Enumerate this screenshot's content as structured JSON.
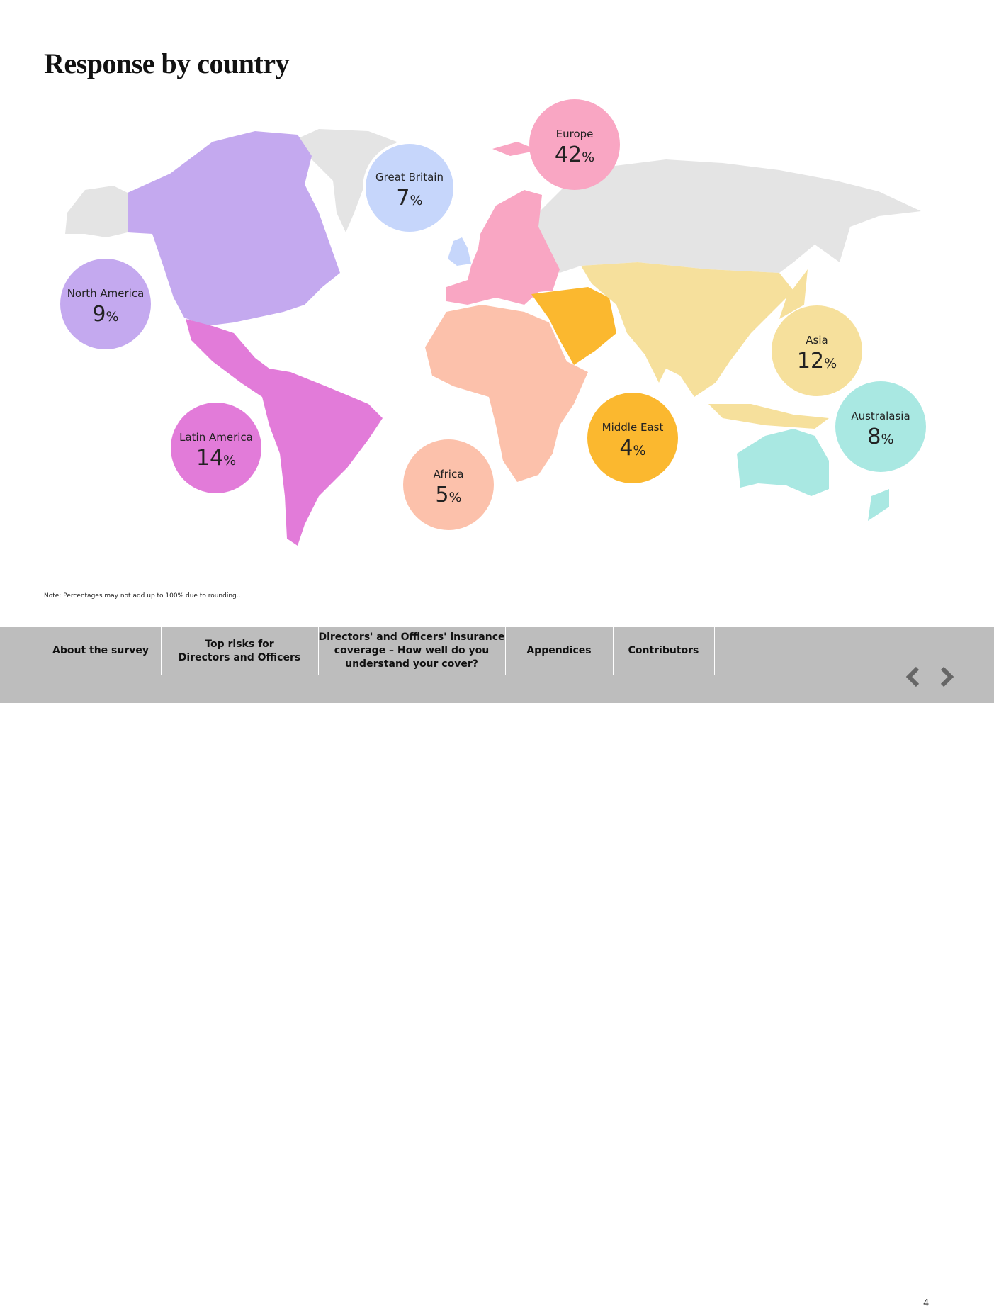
{
  "title": "Response by country",
  "regions": [
    {
      "name": "Europe",
      "value": 42,
      "unit": "%",
      "color": "#f9a6c3"
    },
    {
      "name": "Great Britain",
      "value": 7,
      "unit": "%",
      "color": "#c6d6fb"
    },
    {
      "name": "North America",
      "value": 9,
      "unit": "%",
      "color": "#c4a9ef"
    },
    {
      "name": "Latin America",
      "value": 14,
      "unit": "%",
      "color": "#e27bd9"
    },
    {
      "name": "Africa",
      "value": 5,
      "unit": "%",
      "color": "#fcc1ab"
    },
    {
      "name": "Middle East",
      "value": 4,
      "unit": "%",
      "color": "#fbb82f"
    },
    {
      "name": "Asia",
      "value": 12,
      "unit": "%",
      "color": "#f6e09c"
    },
    {
      "name": "Australasia",
      "value": 8,
      "unit": "%",
      "color": "#a9e8e2"
    }
  ],
  "note": "Note: Percentages may not add up to 100% due to rounding..",
  "nav": [
    [
      "About the survey"
    ],
    [
      "Top risks for",
      "Directors and Officers"
    ],
    [
      "Directors' and Officers' insurance",
      "coverage – How well do you",
      "understand your cover?"
    ],
    [
      "Appendices"
    ],
    [
      "Contributors"
    ]
  ],
  "page": "4"
}
